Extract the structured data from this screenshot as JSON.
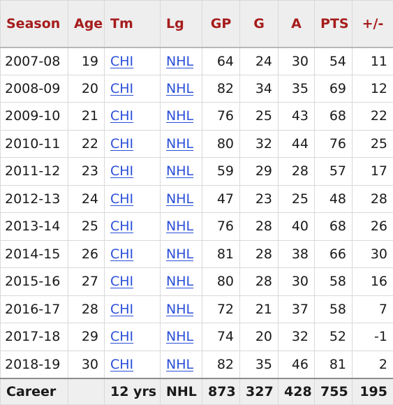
{
  "headers": [
    "Season",
    "Age",
    "Tm",
    "Lg",
    "GP",
    "G",
    "A",
    "PTS",
    "+/-"
  ],
  "rows": [
    {
      "season": "2007-08",
      "age": "19",
      "tm": "CHI",
      "lg": "NHL",
      "gp": "64",
      "g": "24",
      "a": "30",
      "pts": "54",
      "pm": "11"
    },
    {
      "season": "2008-09",
      "age": "20",
      "tm": "CHI",
      "lg": "NHL",
      "gp": "82",
      "g": "34",
      "a": "35",
      "pts": "69",
      "pm": "12"
    },
    {
      "season": "2009-10",
      "age": "21",
      "tm": "CHI",
      "lg": "NHL",
      "gp": "76",
      "g": "25",
      "a": "43",
      "pts": "68",
      "pm": "22"
    },
    {
      "season": "2010-11",
      "age": "22",
      "tm": "CHI",
      "lg": "NHL",
      "gp": "80",
      "g": "32",
      "a": "44",
      "pts": "76",
      "pm": "25"
    },
    {
      "season": "2011-12",
      "age": "23",
      "tm": "CHI",
      "lg": "NHL",
      "gp": "59",
      "g": "29",
      "a": "28",
      "pts": "57",
      "pm": "17"
    },
    {
      "season": "2012-13",
      "age": "24",
      "tm": "CHI",
      "lg": "NHL",
      "gp": "47",
      "g": "23",
      "a": "25",
      "pts": "48",
      "pm": "28"
    },
    {
      "season": "2013-14",
      "age": "25",
      "tm": "CHI",
      "lg": "NHL",
      "gp": "76",
      "g": "28",
      "a": "40",
      "pts": "68",
      "pm": "26"
    },
    {
      "season": "2014-15",
      "age": "26",
      "tm": "CHI",
      "lg": "NHL",
      "gp": "81",
      "g": "28",
      "a": "38",
      "pts": "66",
      "pm": "30"
    },
    {
      "season": "2015-16",
      "age": "27",
      "tm": "CHI",
      "lg": "NHL",
      "gp": "80",
      "g": "28",
      "a": "30",
      "pts": "58",
      "pm": "16"
    },
    {
      "season": "2016-17",
      "age": "28",
      "tm": "CHI",
      "lg": "NHL",
      "gp": "72",
      "g": "21",
      "a": "37",
      "pts": "58",
      "pm": "7"
    },
    {
      "season": "2017-18",
      "age": "29",
      "tm": "CHI",
      "lg": "NHL",
      "gp": "74",
      "g": "20",
      "a": "32",
      "pts": "52",
      "pm": "-1"
    },
    {
      "season": "2018-19",
      "age": "30",
      "tm": "CHI",
      "lg": "NHL",
      "gp": "82",
      "g": "35",
      "a": "46",
      "pts": "81",
      "pm": "2"
    }
  ],
  "footer": {
    "label": "Career",
    "age": "",
    "tm": "12 yrs",
    "lg": "NHL",
    "gp": "873",
    "g": "327",
    "a": "428",
    "pts": "755",
    "pm": "195"
  },
  "colors": {
    "header_text": "#a61c1c",
    "link": "#2a4fd8",
    "header_bg": "#eeeeee",
    "footer_bg": "#efefef"
  }
}
